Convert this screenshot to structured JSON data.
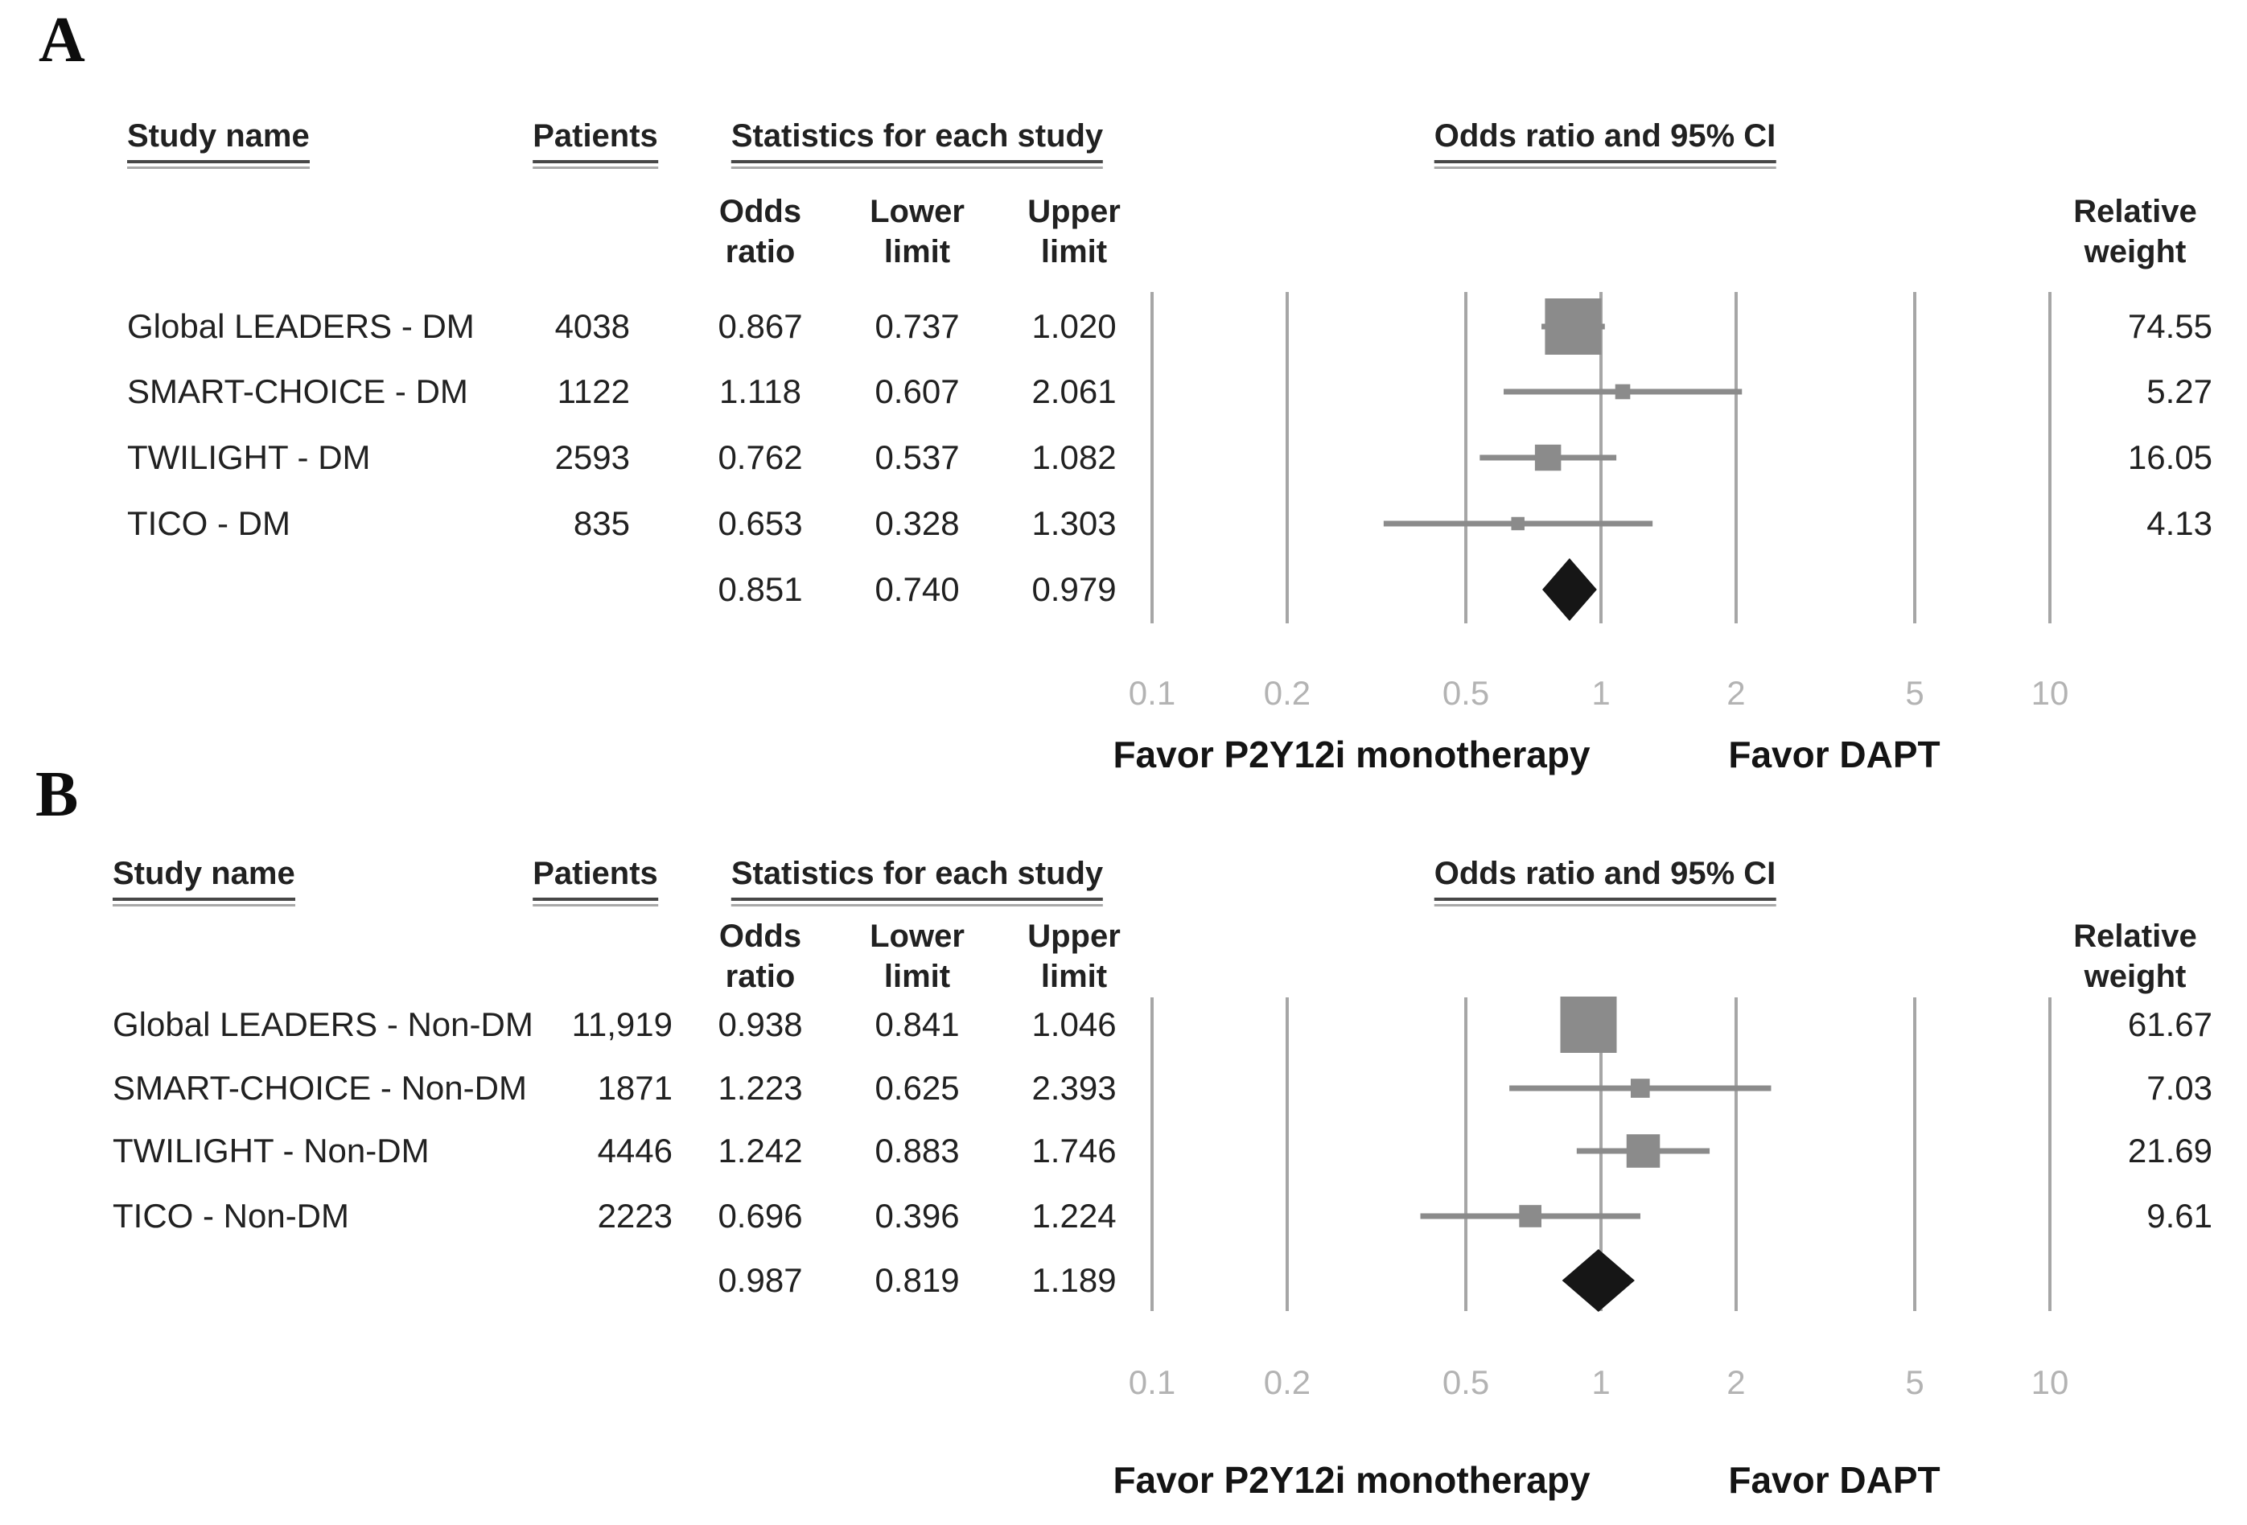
{
  "colors": {
    "text": "#212121",
    "gridline": "#a6a6a6",
    "marker": "#8b8b8b",
    "whisker": "#8b8b8b",
    "diamond": "#161616",
    "tick_label": "#b3b3b3",
    "underline_dark": "#474747",
    "underline_light": "#a8a8a8"
  },
  "chart_data": [
    {
      "type": "forest",
      "panel_label": "A",
      "scale": "log10",
      "xlim": [
        0.1,
        10
      ],
      "axis_ticks": [
        "0.1",
        "0.2",
        "0.5",
        "1",
        "2",
        "5",
        "10"
      ],
      "headers": {
        "study": "Study name",
        "patients": "Patients",
        "stats": "Statistics for each study",
        "plot": "Odds ratio and 95% CI"
      },
      "subheaders": {
        "odds": [
          "Odds",
          "ratio"
        ],
        "lower": [
          "Lower",
          "limit"
        ],
        "upper": [
          "Upper",
          "limit"
        ],
        "weight": [
          "Relative",
          "weight"
        ]
      },
      "favor_left": "Favor P2Y12i monotherapy",
      "favor_right": "Favor DAPT",
      "studies": [
        {
          "name": "Global LEADERS - DM",
          "patients": "4038",
          "odds_ratio": "0.867",
          "lower": "0.737",
          "upper": "1.020",
          "weight": "74.55"
        },
        {
          "name": "SMART-CHOICE - DM",
          "patients": "1122",
          "odds_ratio": "1.118",
          "lower": "0.607",
          "upper": "2.061",
          "weight": "5.27"
        },
        {
          "name": "TWILIGHT - DM",
          "patients": "2593",
          "odds_ratio": "0.762",
          "lower": "0.537",
          "upper": "1.082",
          "weight": "16.05"
        },
        {
          "name": "TICO - DM",
          "patients": "835",
          "odds_ratio": "0.653",
          "lower": "0.328",
          "upper": "1.303",
          "weight": "4.13"
        }
      ],
      "summary": {
        "odds_ratio": "0.851",
        "lower": "0.740",
        "upper": "0.979"
      }
    },
    {
      "type": "forest",
      "panel_label": "B",
      "scale": "log10",
      "xlim": [
        0.1,
        10
      ],
      "axis_ticks": [
        "0.1",
        "0.2",
        "0.5",
        "1",
        "2",
        "5",
        "10"
      ],
      "headers": {
        "study": "Study name",
        "patients": "Patients",
        "stats": "Statistics for each study",
        "plot": "Odds ratio and 95% CI"
      },
      "subheaders": {
        "odds": [
          "Odds",
          "ratio"
        ],
        "lower": [
          "Lower",
          "limit"
        ],
        "upper": [
          "Upper",
          "limit"
        ],
        "weight": [
          "Relative",
          "weight"
        ]
      },
      "favor_left": "Favor P2Y12i monotherapy",
      "favor_right": "Favor DAPT",
      "studies": [
        {
          "name": "Global LEADERS - Non-DM",
          "patients": "11,919",
          "odds_ratio": "0.938",
          "lower": "0.841",
          "upper": "1.046",
          "weight": "61.67"
        },
        {
          "name": "SMART-CHOICE - Non-DM",
          "patients": "1871",
          "odds_ratio": "1.223",
          "lower": "0.625",
          "upper": "2.393",
          "weight": "7.03"
        },
        {
          "name": "TWILIGHT - Non-DM",
          "patients": "4446",
          "odds_ratio": "1.242",
          "lower": "0.883",
          "upper": "1.746",
          "weight": "21.69"
        },
        {
          "name": "TICO - Non-DM",
          "patients": "2223",
          "odds_ratio": "0.696",
          "lower": "0.396",
          "upper": "1.224",
          "weight": "9.61"
        }
      ],
      "summary": {
        "odds_ratio": "0.987",
        "lower": "0.819",
        "upper": "1.189"
      }
    }
  ]
}
